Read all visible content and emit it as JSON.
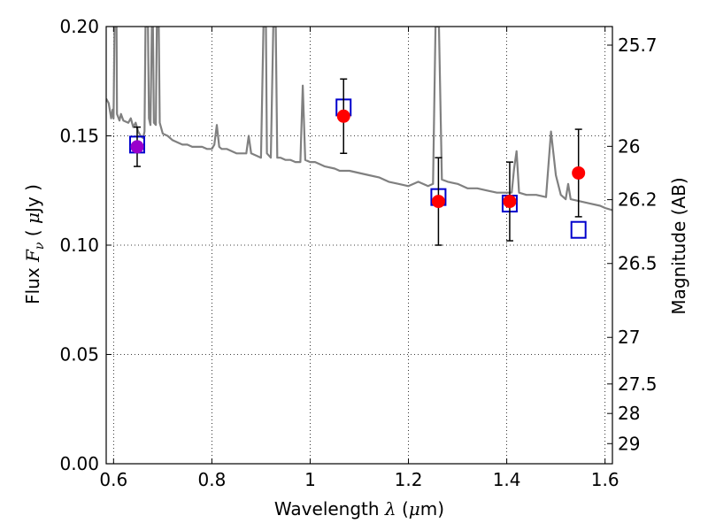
{
  "chart_data": {
    "type": "scatter",
    "xlabel": {
      "pre": "Wavelength ",
      "sym": "λ",
      "post": " (",
      "unit_sym": "μ",
      "unit": "m)"
    },
    "ylabel": {
      "pre": "Flux ",
      "sym": "F",
      "sub": "ν",
      "post": " ( ",
      "unit_sym": "μ",
      "unit": "Jy )"
    },
    "y2label": "Magnitude (AB)",
    "xlim": [
      0.585,
      1.615
    ],
    "ylim": [
      0.0,
      0.2
    ],
    "xticks": [
      0.6,
      0.8,
      1.0,
      1.2,
      1.4,
      1.6
    ],
    "xtick_labels": [
      "0.6",
      "0.8",
      "1",
      "1.2",
      "1.4",
      "1.6"
    ],
    "yticks": [
      0.0,
      0.05,
      0.1,
      0.15,
      0.2
    ],
    "ytick_labels": [
      "0.00",
      "0.05",
      "0.10",
      "0.15",
      "0.20"
    ],
    "y2ticks": [
      {
        "label": "25.7",
        "flux": 0.1915
      },
      {
        "label": "26",
        "flux": 0.1452
      },
      {
        "label": "26.2",
        "flux": 0.1208
      },
      {
        "label": "26.5",
        "flux": 0.0916
      },
      {
        "label": "27",
        "flux": 0.0578
      },
      {
        "label": "27.5",
        "flux": 0.0365
      },
      {
        "label": "28",
        "flux": 0.023
      },
      {
        "label": "29",
        "flux": 0.0092
      }
    ],
    "grid": true,
    "series": [
      {
        "kind": "line",
        "color": "#808080",
        "points": [
          [
            0.585,
            0.167
          ],
          [
            0.59,
            0.165
          ],
          [
            0.595,
            0.158
          ],
          [
            0.598,
            0.162
          ],
          [
            0.6,
            0.158
          ],
          [
            0.602,
            0.2
          ],
          [
            0.606,
            0.2
          ],
          [
            0.607,
            0.16
          ],
          [
            0.612,
            0.157
          ],
          [
            0.615,
            0.16
          ],
          [
            0.62,
            0.157
          ],
          [
            0.63,
            0.156
          ],
          [
            0.635,
            0.158
          ],
          [
            0.64,
            0.154
          ],
          [
            0.645,
            0.156
          ],
          [
            0.65,
            0.152
          ],
          [
            0.655,
            0.15
          ],
          [
            0.66,
            0.149
          ],
          [
            0.663,
            0.152
          ],
          [
            0.665,
            0.2
          ],
          [
            0.67,
            0.2
          ],
          [
            0.672,
            0.158
          ],
          [
            0.675,
            0.155
          ],
          [
            0.678,
            0.2
          ],
          [
            0.68,
            0.2
          ],
          [
            0.682,
            0.156
          ],
          [
            0.686,
            0.155
          ],
          [
            0.688,
            0.2
          ],
          [
            0.692,
            0.2
          ],
          [
            0.694,
            0.156
          ],
          [
            0.7,
            0.151
          ],
          [
            0.71,
            0.15
          ],
          [
            0.72,
            0.148
          ],
          [
            0.73,
            0.147
          ],
          [
            0.74,
            0.146
          ],
          [
            0.75,
            0.146
          ],
          [
            0.76,
            0.145
          ],
          [
            0.77,
            0.145
          ],
          [
            0.78,
            0.145
          ],
          [
            0.79,
            0.144
          ],
          [
            0.8,
            0.144
          ],
          [
            0.805,
            0.146
          ],
          [
            0.81,
            0.155
          ],
          [
            0.815,
            0.145
          ],
          [
            0.82,
            0.144
          ],
          [
            0.83,
            0.144
          ],
          [
            0.84,
            0.143
          ],
          [
            0.85,
            0.142
          ],
          [
            0.86,
            0.142
          ],
          [
            0.87,
            0.142
          ],
          [
            0.875,
            0.15
          ],
          [
            0.88,
            0.142
          ],
          [
            0.89,
            0.141
          ],
          [
            0.9,
            0.14
          ],
          [
            0.905,
            0.2
          ],
          [
            0.91,
            0.2
          ],
          [
            0.912,
            0.142
          ],
          [
            0.92,
            0.14
          ],
          [
            0.925,
            0.2
          ],
          [
            0.93,
            0.2
          ],
          [
            0.933,
            0.14
          ],
          [
            0.94,
            0.14
          ],
          [
            0.95,
            0.139
          ],
          [
            0.96,
            0.139
          ],
          [
            0.97,
            0.138
          ],
          [
            0.98,
            0.138
          ],
          [
            0.985,
            0.173
          ],
          [
            0.99,
            0.139
          ],
          [
            1.0,
            0.138
          ],
          [
            1.01,
            0.138
          ],
          [
            1.02,
            0.137
          ],
          [
            1.03,
            0.136
          ],
          [
            1.05,
            0.135
          ],
          [
            1.06,
            0.134
          ],
          [
            1.08,
            0.134
          ],
          [
            1.1,
            0.133
          ],
          [
            1.12,
            0.132
          ],
          [
            1.14,
            0.131
          ],
          [
            1.16,
            0.129
          ],
          [
            1.18,
            0.128
          ],
          [
            1.2,
            0.127
          ],
          [
            1.22,
            0.129
          ],
          [
            1.24,
            0.127
          ],
          [
            1.25,
            0.128
          ],
          [
            1.255,
            0.2
          ],
          [
            1.262,
            0.2
          ],
          [
            1.268,
            0.13
          ],
          [
            1.28,
            0.129
          ],
          [
            1.3,
            0.128
          ],
          [
            1.32,
            0.126
          ],
          [
            1.34,
            0.126
          ],
          [
            1.36,
            0.125
          ],
          [
            1.38,
            0.124
          ],
          [
            1.4,
            0.124
          ],
          [
            1.41,
            0.124
          ],
          [
            1.415,
            0.135
          ],
          [
            1.42,
            0.143
          ],
          [
            1.425,
            0.124
          ],
          [
            1.44,
            0.123
          ],
          [
            1.46,
            0.123
          ],
          [
            1.48,
            0.122
          ],
          [
            1.49,
            0.152
          ],
          [
            1.5,
            0.132
          ],
          [
            1.51,
            0.123
          ],
          [
            1.52,
            0.121
          ],
          [
            1.525,
            0.128
          ],
          [
            1.53,
            0.121
          ],
          [
            1.55,
            0.12
          ],
          [
            1.57,
            0.119
          ],
          [
            1.59,
            0.118
          ],
          [
            1.6,
            0.117
          ],
          [
            1.615,
            0.116
          ]
        ]
      },
      {
        "kind": "model-squares",
        "color": "#0000cc",
        "x": [
          0.648,
          1.068,
          1.261,
          1.406,
          1.546
        ],
        "y": [
          0.146,
          0.163,
          0.122,
          0.119,
          0.107
        ]
      },
      {
        "kind": "points",
        "color": "#ff0000",
        "x": [
          0.648,
          1.068,
          1.261,
          1.406,
          1.546
        ],
        "y": [
          0.145,
          0.159,
          0.12,
          0.12,
          0.133
        ],
        "err": [
          0.009,
          0.017,
          0.02,
          0.018,
          0.02
        ],
        "first_color": "#9900cc"
      }
    ]
  }
}
